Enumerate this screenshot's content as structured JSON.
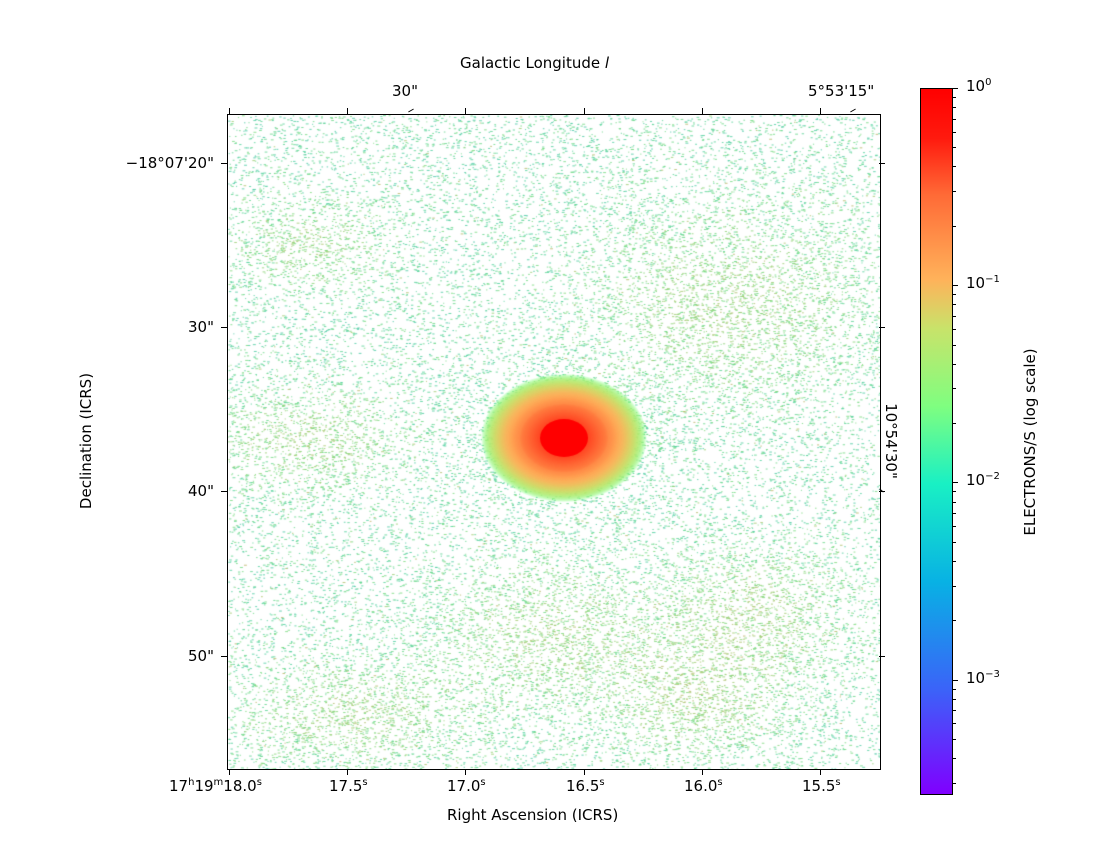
{
  "chart_data": {
    "type": "heatmap",
    "title": "",
    "xlabel": "Right Ascension (ICRS)",
    "ylabel": "Declination (ICRS)",
    "top_label": "Galactic Longitude l",
    "right_label": "10°54'30\"",
    "x_ticks": [
      {
        "h": "17",
        "m": "19",
        "s": "18.0"
      },
      {
        "s": "17.5"
      },
      {
        "s": "17.0"
      },
      {
        "s": "16.5"
      },
      {
        "s": "16.0"
      },
      {
        "s": "15.5"
      }
    ],
    "y_ticks": [
      "−18°07'20\"",
      "30\"",
      "40\"",
      "50\""
    ],
    "top_ticks": [
      "30\"",
      "5°53'15\""
    ],
    "colorbar": {
      "label": "ELECTRONS/S (log scale)",
      "scale": "log",
      "colormap": "rainbow",
      "range": [
        0.00026,
        1.0
      ],
      "ticks": [
        {
          "base": "10",
          "exp": "0",
          "value": 1
        },
        {
          "base": "10",
          "exp": "−1",
          "value": 0.1
        },
        {
          "base": "10",
          "exp": "−2",
          "value": 0.01
        },
        {
          "base": "10",
          "exp": "−3",
          "value": 0.001
        }
      ]
    },
    "bright_source": {
      "ra_s": 16.6,
      "dec_arcsec": 37,
      "peak": 1.0
    }
  }
}
